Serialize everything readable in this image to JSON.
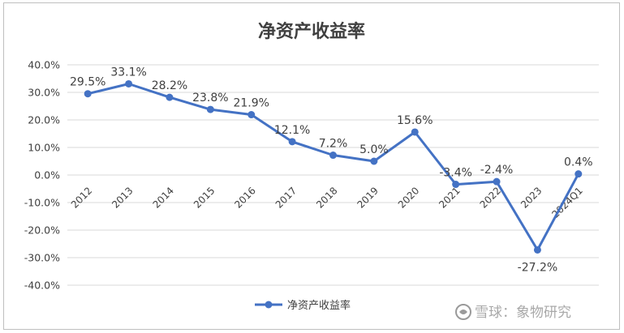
{
  "chart_data": {
    "type": "line",
    "title": "净资产收益率",
    "categories": [
      "2012",
      "2013",
      "2014",
      "2015",
      "2016",
      "2017",
      "2018",
      "2019",
      "2020",
      "2021",
      "2022",
      "2023",
      "2024Q1"
    ],
    "series": [
      {
        "name": "净资产收益率",
        "values": [
          29.5,
          33.1,
          28.2,
          23.8,
          21.9,
          12.1,
          7.2,
          5.0,
          15.6,
          -3.4,
          -2.4,
          -27.2,
          0.4
        ],
        "labels": [
          "29.5%",
          "33.1%",
          "28.2%",
          "23.8%",
          "21.9%",
          "12.1%",
          "7.2%",
          "5.0%",
          "15.6%",
          "-3.4%",
          "-2.4%",
          "-27.2%",
          "0.4%"
        ],
        "color": "#4472c4"
      }
    ],
    "ylim": [
      -40,
      40
    ],
    "yticks": [
      40,
      30,
      20,
      10,
      0,
      -10,
      -20,
      -30,
      -40
    ],
    "ytick_labels": [
      "40.0%",
      "30.0%",
      "20.0%",
      "10.0%",
      "0.0%",
      "-10.0%",
      "-20.0%",
      "-30.0%",
      "-40.0%"
    ],
    "grid": true,
    "legend": "bottom",
    "xlabel": "",
    "ylabel": ""
  },
  "watermark": "雪球：象物研究"
}
